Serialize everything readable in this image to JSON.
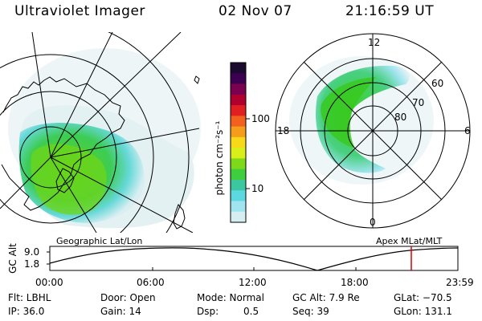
{
  "header": {
    "instrument": "Ultraviolet Imager",
    "date": "02 Nov 07",
    "time": "21:16:59 UT"
  },
  "colorbar": {
    "unit_label": "photon cm⁻²s⁻¹",
    "tick_labels": [
      "100",
      "10"
    ],
    "colors": [
      "#1a0a30",
      "#3d0050",
      "#7a0050",
      "#b00030",
      "#e02020",
      "#f26020",
      "#f59c1c",
      "#f7d91a",
      "#d8ef1a",
      "#7ed91a",
      "#3ece3e",
      "#3cc7a0",
      "#5cd8e0",
      "#9fe4ee",
      "#d6eef2"
    ]
  },
  "left_map": {
    "caption": "Geographic Lat/Lon"
  },
  "right_map": {
    "caption": "Apex MLat/MLT",
    "mlt_labels": [
      "12",
      "18",
      "6",
      "0"
    ],
    "lat_labels": [
      "60",
      "70",
      "80"
    ]
  },
  "timeline": {
    "axis_title": "GC Alt",
    "y_labels": [
      "9.0",
      "1.8"
    ],
    "x_labels": [
      "00:00",
      "06:00",
      "12:00",
      "18:00",
      "23:59"
    ],
    "marker_color": "#e00000"
  },
  "footer": {
    "flt": "Flt: LBHL",
    "ip": "IP: 36.0",
    "door": "Door: Open",
    "gain": "Gain: 14",
    "mode": "Mode: Normal",
    "dsp_label": "Dsp:",
    "dsp_value": "0.5",
    "gc_alt": "GC Alt: 7.9 Re",
    "seq": "Seq: 39",
    "glat": "GLat: −70.5",
    "glon": "GLon: 131.1"
  }
}
